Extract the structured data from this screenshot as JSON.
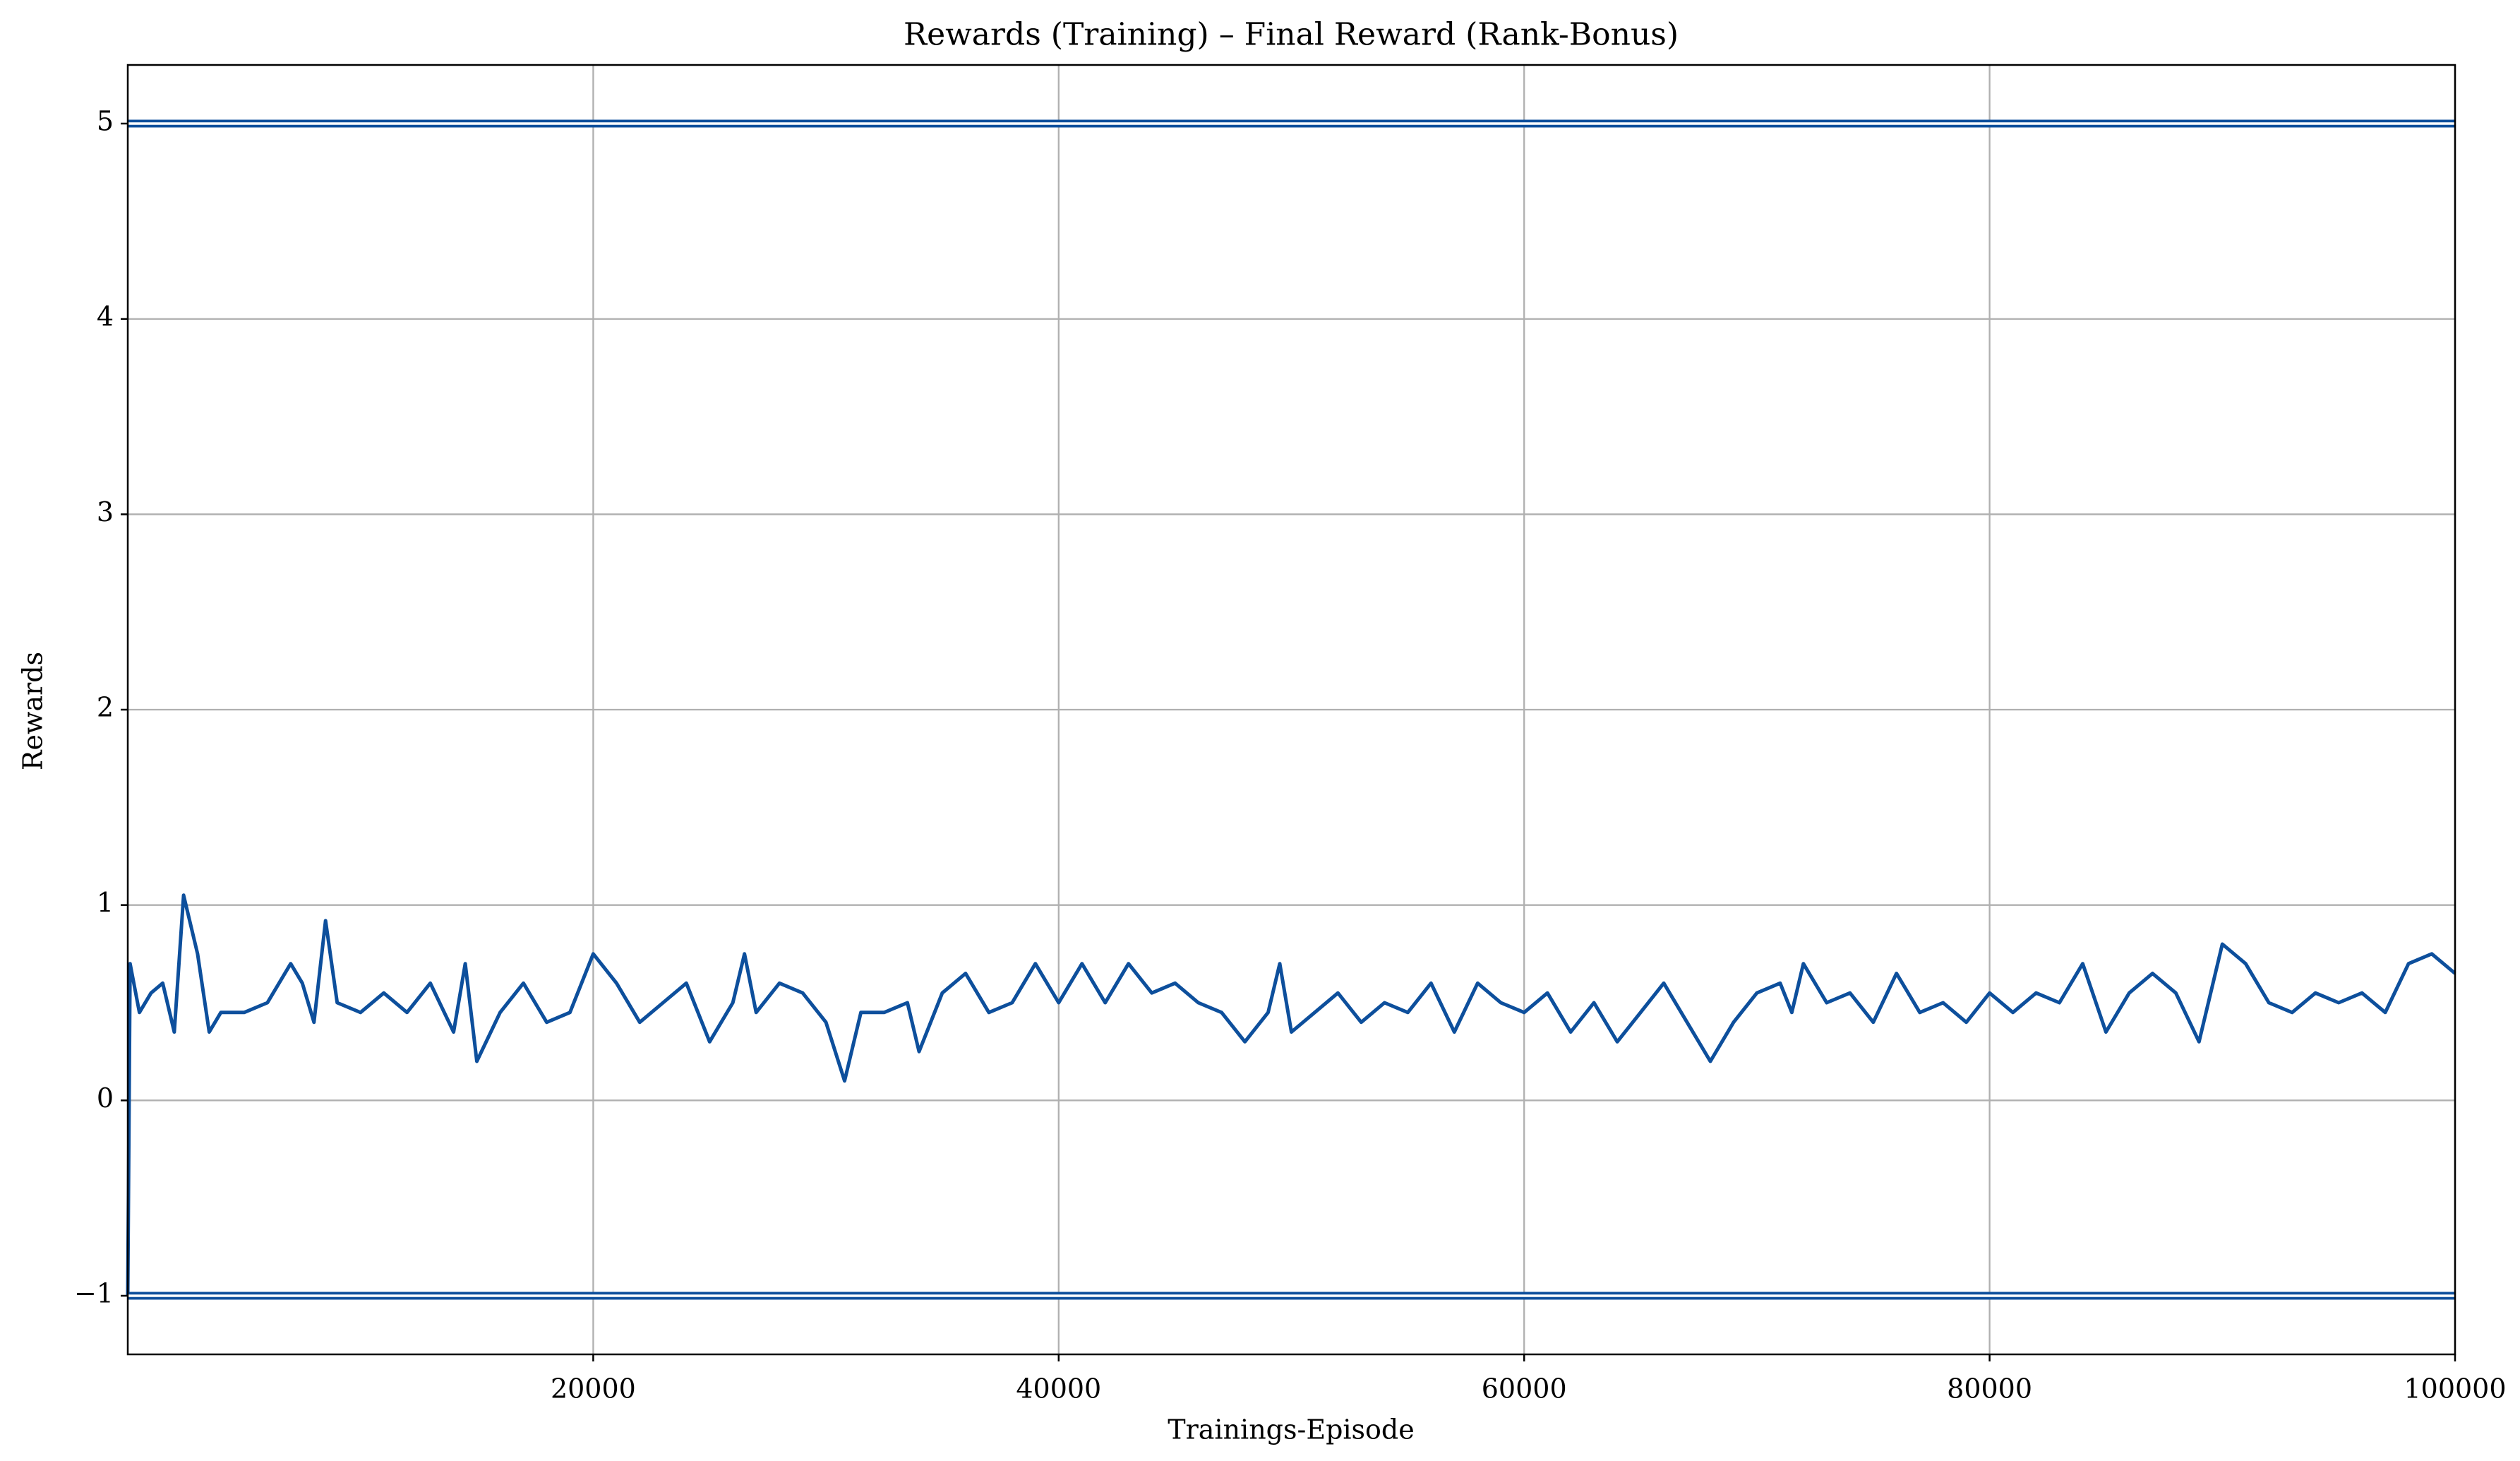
{
  "chart_data": {
    "type": "line",
    "title": "Rewards (Training) – Final Reward (Rank-Bonus)",
    "x_label": "Trainings-Episode",
    "y_label": "Rewards",
    "xlim": [
      0,
      100000
    ],
    "ylim": [
      -1.3,
      5.3
    ],
    "xticks": [
      20000,
      40000,
      60000,
      80000,
      100000
    ],
    "yticks": [
      {
        "value": -1,
        "label": "−1"
      },
      0,
      1,
      2,
      3,
      4,
      5
    ],
    "grid": true,
    "series": [
      {
        "color": "#0d4f9c",
        "x": [
          0,
          100,
          500,
          1000,
          1500,
          2000,
          2400,
          3000,
          3500,
          4000,
          5000,
          6000,
          7000,
          7500,
          8000,
          8500,
          9000,
          10000,
          11000,
          12000,
          13000,
          14000,
          14500,
          15000,
          16000,
          17000,
          18000,
          19000,
          20000,
          21000,
          22000,
          23000,
          24000,
          25000,
          26000,
          26500,
          27000,
          28000,
          29000,
          30000,
          30800,
          31500,
          32500,
          33500,
          34000,
          35000,
          36000,
          37000,
          38000,
          39000,
          40000,
          41000,
          42000,
          43000,
          44000,
          45000,
          46000,
          47000,
          48000,
          49000,
          49500,
          50000,
          51000,
          52000,
          53000,
          54000,
          55000,
          56000,
          57000,
          58000,
          59000,
          60000,
          61000,
          62000,
          63000,
          64000,
          65000,
          66000,
          67000,
          68000,
          69000,
          70000,
          71000,
          71500,
          72000,
          73000,
          74000,
          75000,
          76000,
          77000,
          78000,
          79000,
          80000,
          81000,
          82000,
          83000,
          84000,
          85000,
          86000,
          87000,
          88000,
          89000,
          90000,
          91000,
          92000,
          93000,
          94000,
          95000,
          96000,
          97000,
          98000,
          99000,
          100000
        ],
        "values": [
          -1,
          0.7,
          0.45,
          0.55,
          0.6,
          0.35,
          1.05,
          0.75,
          0.35,
          0.45,
          0.45,
          0.5,
          0.7,
          0.6,
          0.4,
          0.92,
          0.5,
          0.45,
          0.55,
          0.45,
          0.6,
          0.35,
          0.7,
          0.2,
          0.45,
          0.6,
          0.4,
          0.45,
          0.75,
          0.6,
          0.4,
          0.5,
          0.6,
          0.3,
          0.5,
          0.75,
          0.45,
          0.6,
          0.55,
          0.4,
          0.1,
          0.45,
          0.45,
          0.5,
          0.25,
          0.55,
          0.65,
          0.45,
          0.5,
          0.7,
          0.5,
          0.7,
          0.5,
          0.7,
          0.55,
          0.6,
          0.5,
          0.45,
          0.3,
          0.45,
          0.7,
          0.35,
          0.45,
          0.55,
          0.4,
          0.5,
          0.45,
          0.6,
          0.35,
          0.6,
          0.5,
          0.45,
          0.55,
          0.35,
          0.5,
          0.3,
          0.45,
          0.6,
          0.4,
          0.2,
          0.4,
          0.55,
          0.6,
          0.45,
          0.7,
          0.5,
          0.55,
          0.4,
          0.65,
          0.45,
          0.5,
          0.4,
          0.55,
          0.45,
          0.55,
          0.5,
          0.7,
          0.35,
          0.55,
          0.65,
          0.55,
          0.3,
          0.8,
          0.7,
          0.5,
          0.45,
          0.55,
          0.5,
          0.55,
          0.45,
          0.7,
          0.75,
          0.65
        ]
      },
      {
        "color": "#0d4f9c",
        "x": [
          0,
          100000
        ],
        "values": [
          5,
          5
        ],
        "double": true
      },
      {
        "color": "#0d4f9c",
        "x": [
          0,
          100000
        ],
        "values": [
          -1,
          -1
        ],
        "double": true
      }
    ]
  }
}
